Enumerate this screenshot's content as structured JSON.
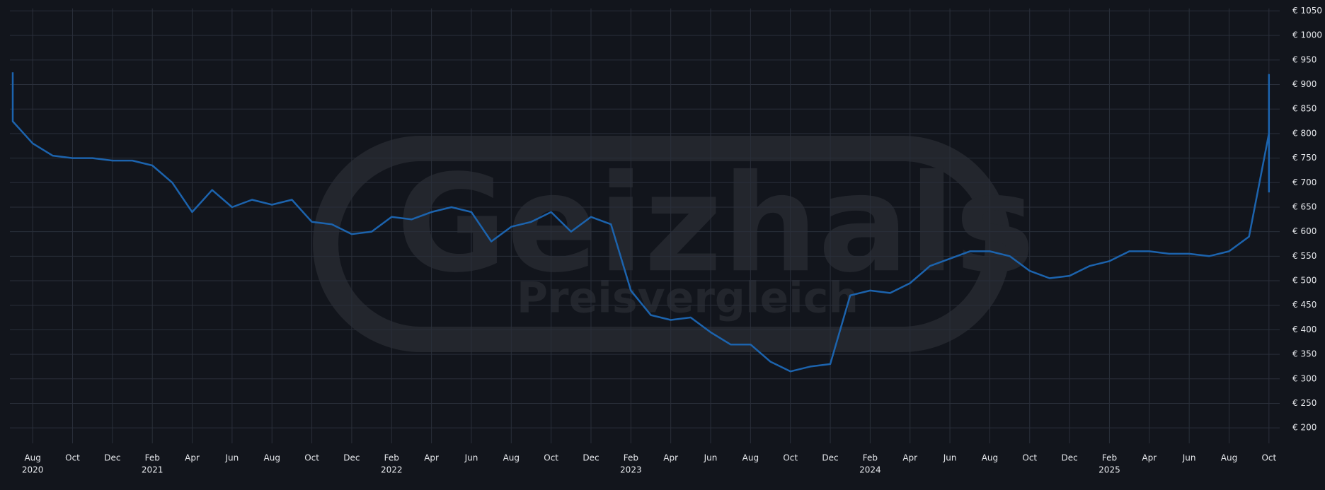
{
  "chart_data": {
    "type": "line",
    "watermark_title": "Geizhals",
    "watermark_subtitle": "Preisvergleich",
    "color": "#1c63ad",
    "grid": true,
    "x": [
      "2020-07",
      "2020-07",
      "2020-08",
      "2020-09",
      "2020-10",
      "2020-11",
      "2020-12",
      "2021-01",
      "2021-02",
      "2021-03",
      "2021-04",
      "2021-05",
      "2021-06",
      "2021-07",
      "2021-08",
      "2021-09",
      "2021-10",
      "2021-11",
      "2021-12",
      "2022-01",
      "2022-02",
      "2022-03",
      "2022-04",
      "2022-05",
      "2022-06",
      "2022-07",
      "2022-08",
      "2022-09",
      "2022-10",
      "2022-11",
      "2022-12",
      "2023-01",
      "2023-02",
      "2023-03",
      "2023-04",
      "2023-05",
      "2023-06",
      "2023-07",
      "2023-08",
      "2023-09",
      "2023-10",
      "2023-11",
      "2023-12",
      "2024-01",
      "2024-02",
      "2024-03",
      "2024-04",
      "2024-05",
      "2024-06",
      "2024-07",
      "2024-08",
      "2024-09",
      "2024-10",
      "2024-11",
      "2024-12",
      "2025-01",
      "2025-02",
      "2025-03",
      "2025-04",
      "2025-05",
      "2025-06",
      "2025-07",
      "2025-08",
      "2025-09",
      "2025-10",
      "2025-10",
      "2025-10"
    ],
    "values": [
      925,
      825,
      780,
      755,
      750,
      750,
      745,
      745,
      735,
      700,
      640,
      685,
      650,
      665,
      655,
      665,
      620,
      615,
      595,
      600,
      630,
      625,
      640,
      650,
      640,
      580,
      610,
      620,
      640,
      600,
      630,
      615,
      480,
      430,
      420,
      425,
      395,
      370,
      370,
      335,
      315,
      325,
      330,
      470,
      480,
      475,
      495,
      530,
      545,
      560,
      560,
      550,
      520,
      505,
      510,
      530,
      540,
      560,
      560,
      555,
      555,
      550,
      560,
      590,
      800,
      920,
      680
    ],
    "xlim": [
      "2020-07",
      "2025-11"
    ],
    "ylim": [
      180,
      1055
    ],
    "yticks": [
      {
        "value": 200,
        "label": "€ 200"
      },
      {
        "value": 250,
        "label": "€ 250"
      },
      {
        "value": 300,
        "label": "€ 300"
      },
      {
        "value": 350,
        "label": "€ 350"
      },
      {
        "value": 400,
        "label": "€ 400"
      },
      {
        "value": 450,
        "label": "€ 450"
      },
      {
        "value": 500,
        "label": "€ 500"
      },
      {
        "value": 550,
        "label": "€ 550"
      },
      {
        "value": 600,
        "label": "€ 600"
      },
      {
        "value": 650,
        "label": "€ 650"
      },
      {
        "value": 700,
        "label": "€ 700"
      },
      {
        "value": 750,
        "label": "€ 750"
      },
      {
        "value": 800,
        "label": "€ 800"
      },
      {
        "value": 850,
        "label": "€ 850"
      },
      {
        "value": 900,
        "label": "€ 900"
      },
      {
        "value": 950,
        "label": "€ 950"
      },
      {
        "value": 1000,
        "label": "€ 1000"
      },
      {
        "value": 1050,
        "label": "€ 1050"
      }
    ],
    "xticks": [
      {
        "value": "2020-08",
        "label": "Aug"
      },
      {
        "value": "2020-10",
        "label": "Oct"
      },
      {
        "value": "2020-12",
        "label": "Dec"
      },
      {
        "value": "2021-02",
        "label": "Feb"
      },
      {
        "value": "2021-04",
        "label": "Apr"
      },
      {
        "value": "2021-06",
        "label": "Jun"
      },
      {
        "value": "2021-08",
        "label": "Aug"
      },
      {
        "value": "2021-10",
        "label": "Oct"
      },
      {
        "value": "2021-12",
        "label": "Dec"
      },
      {
        "value": "2022-02",
        "label": "Feb"
      },
      {
        "value": "2022-04",
        "label": "Apr"
      },
      {
        "value": "2022-06",
        "label": "Jun"
      },
      {
        "value": "2022-08",
        "label": "Aug"
      },
      {
        "value": "2022-10",
        "label": "Oct"
      },
      {
        "value": "2022-12",
        "label": "Dec"
      },
      {
        "value": "2023-02",
        "label": "Feb"
      },
      {
        "value": "2023-04",
        "label": "Apr"
      },
      {
        "value": "2023-06",
        "label": "Jun"
      },
      {
        "value": "2023-08",
        "label": "Aug"
      },
      {
        "value": "2023-10",
        "label": "Oct"
      },
      {
        "value": "2023-12",
        "label": "Dec"
      },
      {
        "value": "2024-02",
        "label": "Feb"
      },
      {
        "value": "2024-04",
        "label": "Apr"
      },
      {
        "value": "2024-06",
        "label": "Jun"
      },
      {
        "value": "2024-08",
        "label": "Aug"
      },
      {
        "value": "2024-10",
        "label": "Oct"
      },
      {
        "value": "2024-12",
        "label": "Dec"
      },
      {
        "value": "2025-02",
        "label": "Feb"
      },
      {
        "value": "2025-04",
        "label": "Apr"
      },
      {
        "value": "2025-06",
        "label": "Jun"
      },
      {
        "value": "2025-08",
        "label": "Aug"
      },
      {
        "value": "2025-10",
        "label": "Oct"
      }
    ],
    "year_labels": [
      {
        "value": "2020-08",
        "label": "2020"
      },
      {
        "value": "2021-02",
        "label": "2021"
      },
      {
        "value": "2022-02",
        "label": "2022"
      },
      {
        "value": "2023-02",
        "label": "2023"
      },
      {
        "value": "2024-02",
        "label": "2024"
      },
      {
        "value": "2025-02",
        "label": "2025"
      }
    ]
  }
}
